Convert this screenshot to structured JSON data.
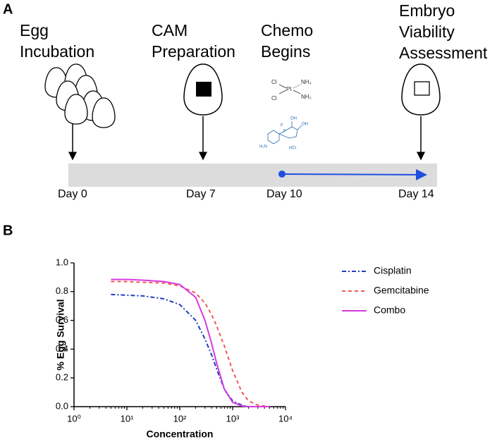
{
  "panels": {
    "a": "A",
    "b": "B"
  },
  "timeline": {
    "stages": [
      {
        "lines": [
          "Egg",
          "Incubation"
        ]
      },
      {
        "lines": [
          "CAM",
          "Preparation"
        ]
      },
      {
        "lines": [
          "Chemo",
          "Begins"
        ]
      },
      {
        "lines": [
          "Embryo",
          "Viability",
          "Assessment"
        ]
      }
    ],
    "days": [
      "Day 0",
      "Day 7",
      "Day 10",
      "Day 14"
    ]
  },
  "structures": {
    "cisplatin": [
      "Cl",
      "Pt",
      "NH₃",
      "Cl",
      "NH₃"
    ],
    "gemcitabine": [
      "F",
      "F",
      "OH",
      "OH",
      "H₂N",
      "HCl"
    ]
  },
  "chart_data": {
    "type": "line",
    "x_label": "Concentration",
    "y_label": "% Egg Survival",
    "xlog": true,
    "xlim": [
      1,
      10000
    ],
    "xticks": [
      {
        "value": 1,
        "label": "10⁰"
      },
      {
        "value": 10,
        "label": "10¹"
      },
      {
        "value": 100,
        "label": "10²"
      },
      {
        "value": 1000,
        "label": "10³"
      },
      {
        "value": 10000,
        "label": "10⁴"
      }
    ],
    "ylim": [
      0,
      1
    ],
    "yticks": [
      {
        "value": 0,
        "label": "0.0"
      },
      0.2,
      0.4,
      0.6,
      0.8,
      {
        "value": 1,
        "label": "1.0"
      }
    ],
    "x": [
      5,
      10,
      20,
      50,
      100,
      200,
      300,
      400,
      500,
      700,
      1000,
      1500,
      2000,
      3000,
      5000
    ],
    "series": [
      {
        "name": "Cisplatin",
        "color": "#1f3fbf",
        "dash": "dashdot",
        "values": [
          0.78,
          0.775,
          0.77,
          0.75,
          0.71,
          0.6,
          0.47,
          0.36,
          0.26,
          0.12,
          0.04,
          0.01,
          0,
          0,
          0
        ]
      },
      {
        "name": "Gemcitabine",
        "color": "#f05a5a",
        "dash": "dashed",
        "values": [
          0.87,
          0.87,
          0.865,
          0.86,
          0.84,
          0.79,
          0.72,
          0.64,
          0.56,
          0.42,
          0.25,
          0.1,
          0.04,
          0.01,
          0
        ]
      },
      {
        "name": "Combo",
        "color": "#d63be0",
        "dash": "solid",
        "values": [
          0.885,
          0.885,
          0.88,
          0.87,
          0.85,
          0.76,
          0.6,
          0.44,
          0.3,
          0.12,
          0.03,
          0.005,
          0,
          0,
          0
        ]
      }
    ]
  }
}
